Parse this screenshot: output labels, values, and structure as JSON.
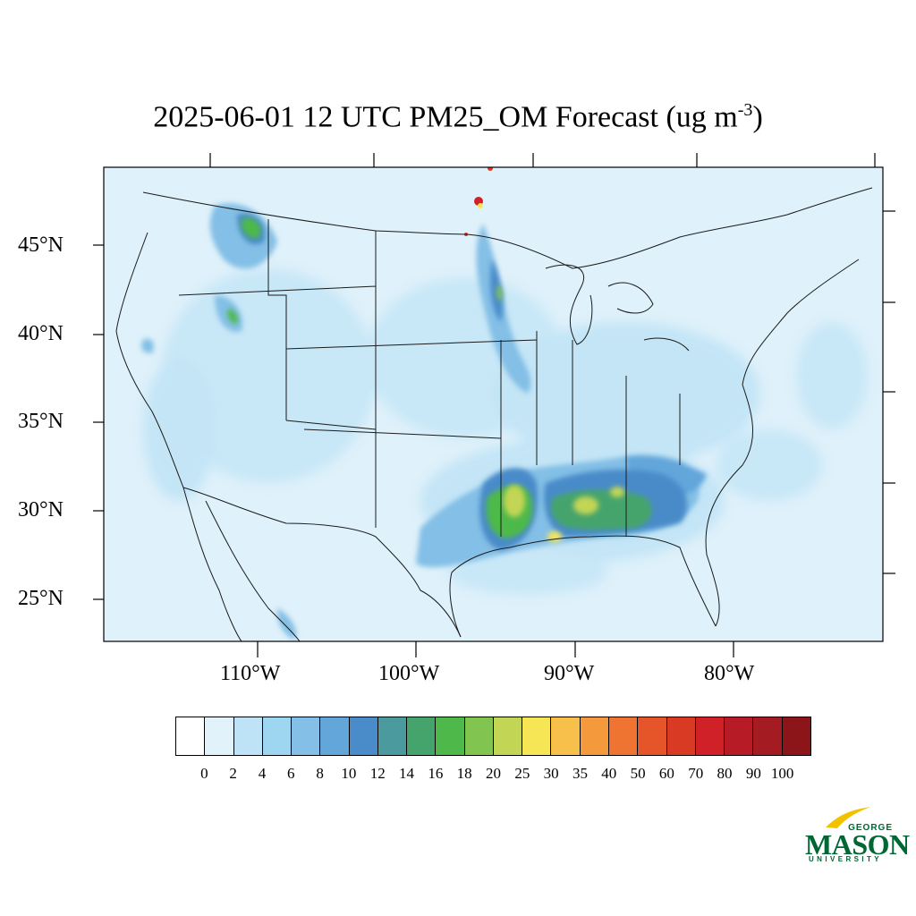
{
  "title_main": "2025-06-01 12 UTC PM25_OM Forecast (ug m",
  "title_sup": "-3",
  "title_end": ")",
  "lat_labels": [
    "45°N",
    "40°N",
    "35°N",
    "30°N",
    "25°N"
  ],
  "lon_labels": [
    "110°W",
    "100°W",
    "90°W",
    "80°W"
  ],
  "colorbar": {
    "levels": [
      "0",
      "2",
      "4",
      "6",
      "8",
      "10",
      "12",
      "14",
      "16",
      "18",
      "20",
      "25",
      "30",
      "35",
      "40",
      "50",
      "60",
      "70",
      "80",
      "90",
      "100"
    ],
    "colors": [
      "#ffffff",
      "#e1f2fb",
      "#bfe3f6",
      "#9ed6f2",
      "#83bfe6",
      "#62a6da",
      "#4a8bc9",
      "#4b9a9e",
      "#44a46c",
      "#4eb94a",
      "#82c450",
      "#c3d555",
      "#f6e655",
      "#f6c04a",
      "#f49a3c",
      "#ef7331",
      "#e65429",
      "#d93a23",
      "#d02028",
      "#b71c26",
      "#a41c22",
      "#8b1518"
    ]
  },
  "map": {
    "background_color": "#dff1fa",
    "border_color": "#1a1a1a"
  },
  "logo": {
    "george": "GEORGE",
    "mason": "MASON",
    "university": "UNIVERSITY"
  }
}
